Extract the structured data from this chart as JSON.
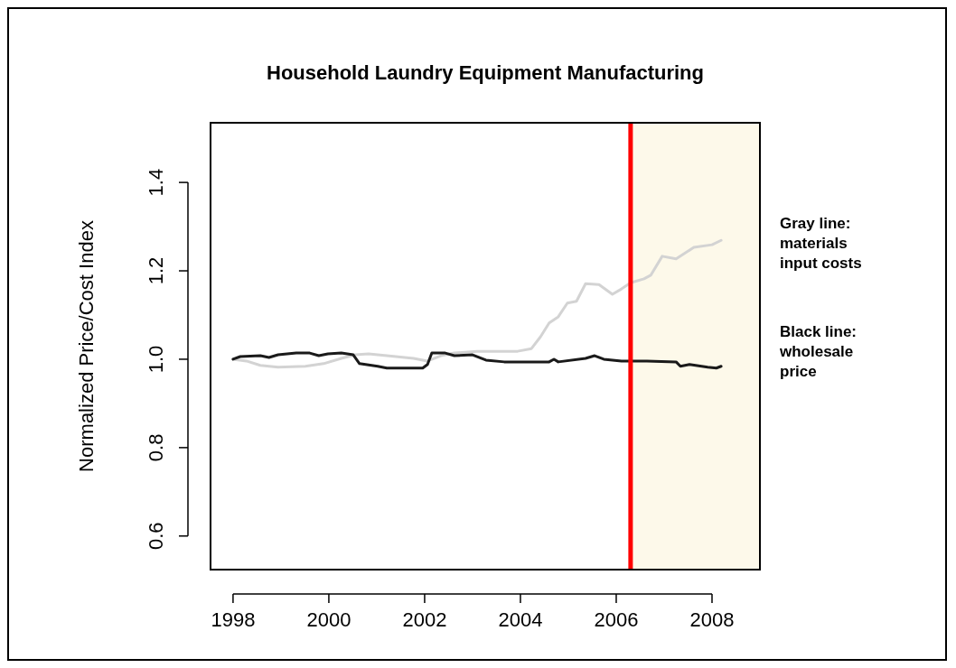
{
  "chart_data": {
    "type": "line",
    "title": "Household Laundry Equipment Manufacturing",
    "ylabel": "Normalized Price/Cost Index",
    "xlim": [
      1997.53,
      2009.0
    ],
    "ylim": [
      0.524,
      1.535
    ],
    "xticks": [
      1998,
      2000,
      2002,
      2004,
      2006,
      2008
    ],
    "yticks": [
      0.6,
      0.8,
      {
        "value": 1,
        "label": "1.0"
      },
      1.2,
      1.4
    ],
    "grid": false,
    "annotations": [
      "Gray line: materials input costs",
      "Black line: wholesale price"
    ],
    "ref_lines": [
      {
        "axis": "x",
        "value": 2006.3,
        "color": "#ff0000"
      }
    ],
    "bands": [
      {
        "axis": "x",
        "from": 2006.3,
        "to": 2009.0,
        "color": "#fdf9ea"
      }
    ],
    "series": [
      {
        "color": "#d3d3d3",
        "x": [
          1998.0,
          1998.28,
          1998.57,
          1998.94,
          1999.51,
          1999.89,
          2000.26,
          2000.55,
          2000.83,
          2001.21,
          2001.77,
          2002.06,
          2002.34,
          2002.62,
          2003.09,
          2003.57,
          2003.94,
          2004.23,
          2004.42,
          2004.6,
          2004.79,
          2004.98,
          2005.17,
          2005.36,
          2005.64,
          2005.92,
          2006.11,
          2006.3,
          2006.58,
          2006.72,
          2006.96,
          2007.25,
          2007.62,
          2008.0,
          2008.19
        ],
        "values": [
          1.0,
          0.996,
          0.986,
          0.982,
          0.984,
          0.99,
          1.002,
          1.01,
          1.012,
          1.008,
          1.002,
          0.996,
          1.008,
          1.014,
          1.018,
          1.018,
          1.018,
          1.024,
          1.051,
          1.082,
          1.096,
          1.127,
          1.131,
          1.171,
          1.169,
          1.147,
          1.159,
          1.173,
          1.182,
          1.19,
          1.233,
          1.227,
          1.253,
          1.259,
          1.269
        ]
      },
      {
        "color": "#1a1a1a",
        "x": [
          1998.0,
          1998.15,
          1998.57,
          1998.75,
          1998.94,
          1999.32,
          1999.6,
          1999.79,
          1999.98,
          2000.26,
          2000.51,
          2000.64,
          2001.02,
          2001.21,
          2001.96,
          2002.06,
          2002.15,
          2002.43,
          2002.62,
          2003.0,
          2003.28,
          2003.66,
          2004.6,
          2004.7,
          2004.79,
          2005.36,
          2005.55,
          2005.74,
          2006.11,
          2006.64,
          2007.25,
          2007.34,
          2007.53,
          2007.91,
          2008.09,
          2008.19
        ],
        "values": [
          1.0,
          1.006,
          1.008,
          1.004,
          1.01,
          1.014,
          1.014,
          1.008,
          1.012,
          1.014,
          1.01,
          0.99,
          0.984,
          0.98,
          0.98,
          0.988,
          1.014,
          1.014,
          1.008,
          1.01,
          0.998,
          0.994,
          0.994,
          1.0,
          0.994,
          1.002,
          1.008,
          1.0,
          0.996,
          0.996,
          0.994,
          0.984,
          0.988,
          0.982,
          0.98,
          0.984
        ]
      }
    ]
  }
}
